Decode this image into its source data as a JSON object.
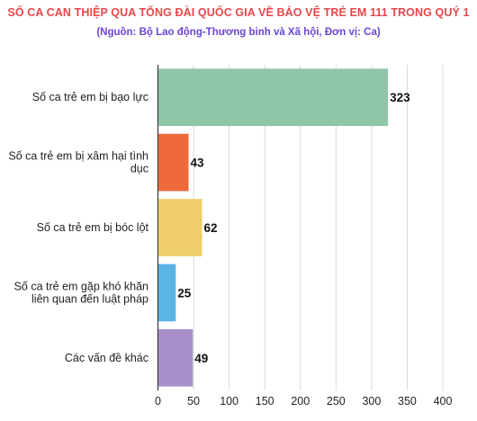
{
  "chart_data": {
    "type": "bar",
    "orientation": "horizontal",
    "title": "SỐ CA CAN THIỆP QUA TỔNG ĐÀI QUỐC GIA VỀ BẢO VỆ TRẺ EM 111 TRONG QUÝ 1",
    "subtitle": "(Nguồn: Bộ Lao động-Thương binh và Xã hội, Đơn vị: Ca)",
    "categories": [
      "Số ca trẻ em bị bạo lực",
      "Số ca trẻ em bị xâm hại tình dục",
      "Số ca trẻ em bị bóc lột",
      "Số ca trẻ em gặp khó khăn liên quan đến luật pháp",
      "Các vấn đề khác"
    ],
    "category_lines": [
      [
        "Số ca trẻ em bị bạo lực"
      ],
      [
        "Số ca trẻ em bị xâm hại tình",
        "dục"
      ],
      [
        "Số ca trẻ em bị bóc lột"
      ],
      [
        "Số ca trẻ em gặp khó khăn",
        "liên quan đến luật pháp"
      ],
      [
        "Các vấn đề khác"
      ]
    ],
    "values": [
      323,
      43,
      62,
      25,
      49
    ],
    "colors": [
      "#8fc5a8",
      "#ee6a3a",
      "#efcd6c",
      "#5ab4e6",
      "#a98fca"
    ],
    "xlim": [
      0,
      400
    ],
    "xticks": [
      0,
      50,
      100,
      150,
      200,
      250,
      300,
      350,
      400
    ],
    "grid": true,
    "xlabel": "",
    "ylabel": ""
  }
}
